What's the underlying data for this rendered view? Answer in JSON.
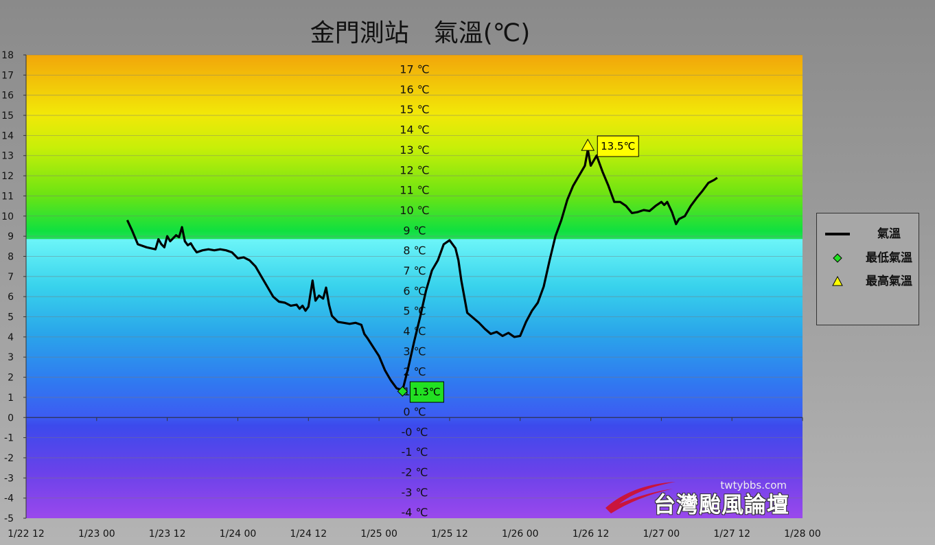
{
  "chart_data": {
    "type": "line",
    "title": "金門測站　氣溫(℃)",
    "ylim": [
      -5,
      18
    ],
    "yticks": [
      "-5",
      "-4",
      "-3",
      "-2",
      "-1",
      "0",
      "1",
      "2",
      "3",
      "4",
      "5",
      "6",
      "7",
      "8",
      "9",
      "10",
      "11",
      "12",
      "13",
      "14",
      "15",
      "16",
      "17",
      "18"
    ],
    "xlim": [
      0,
      132
    ],
    "xticks": [
      {
        "label": "1/22 12",
        "x": 0
      },
      {
        "label": "1/23 00",
        "x": 12
      },
      {
        "label": "1/23 12",
        "x": 24
      },
      {
        "label": "1/24 00",
        "x": 36
      },
      {
        "label": "1/24 12",
        "x": 48
      },
      {
        "label": "1/25 00",
        "x": 60
      },
      {
        "label": "1/25 12",
        "x": 72
      },
      {
        "label": "1/26 00",
        "x": 84
      },
      {
        "label": "1/26 12",
        "x": 96
      },
      {
        "label": "1/27 00",
        "x": 108
      },
      {
        "label": "1/27 12",
        "x": 120
      },
      {
        "label": "1/28 00",
        "x": 132
      }
    ],
    "band_labels": [
      "17 ℃",
      "16 ℃",
      "15 ℃",
      "14 ℃",
      "13 ℃",
      "12 ℃",
      "11 ℃",
      "10 ℃",
      "9 ℃",
      "8 ℃",
      "7 ℃",
      "6 ℃",
      "5 ℃",
      "4 ℃",
      "3 ℃",
      "2 ℃",
      "1 ℃",
      "0 ℃",
      "-0 ℃",
      "-1 ℃",
      "-2 ℃",
      "-3 ℃",
      "-4 ℃"
    ],
    "series": [
      {
        "name": "氣溫",
        "color": "#000000",
        "points": [
          [
            17.2,
            9.8
          ],
          [
            18,
            9.3
          ],
          [
            19,
            8.6
          ],
          [
            20.5,
            8.45
          ],
          [
            22,
            8.35
          ],
          [
            22.5,
            8.85
          ],
          [
            23,
            8.6
          ],
          [
            23.5,
            8.45
          ],
          [
            24,
            9.0
          ],
          [
            24.5,
            8.75
          ],
          [
            25,
            8.9
          ],
          [
            25.5,
            9.05
          ],
          [
            26,
            8.95
          ],
          [
            26.5,
            9.45
          ],
          [
            27,
            8.75
          ],
          [
            27.5,
            8.55
          ],
          [
            28,
            8.65
          ],
          [
            28.5,
            8.4
          ],
          [
            29,
            8.2
          ],
          [
            30,
            8.3
          ],
          [
            31,
            8.35
          ],
          [
            32,
            8.3
          ],
          [
            33,
            8.35
          ],
          [
            34,
            8.3
          ],
          [
            35,
            8.2
          ],
          [
            36,
            7.9
          ],
          [
            37,
            7.95
          ],
          [
            38,
            7.8
          ],
          [
            39,
            7.5
          ],
          [
            40,
            7.0
          ],
          [
            41,
            6.5
          ],
          [
            42,
            6.0
          ],
          [
            43,
            5.75
          ],
          [
            44,
            5.7
          ],
          [
            45,
            5.55
          ],
          [
            46,
            5.6
          ],
          [
            46.5,
            5.4
          ],
          [
            47,
            5.55
          ],
          [
            47.5,
            5.3
          ],
          [
            48,
            5.5
          ],
          [
            48.7,
            6.8
          ],
          [
            49.2,
            5.8
          ],
          [
            49.8,
            6.05
          ],
          [
            50.5,
            5.9
          ],
          [
            51,
            6.45
          ],
          [
            51.5,
            5.6
          ],
          [
            52,
            5.05
          ],
          [
            53,
            4.75
          ],
          [
            54,
            4.7
          ],
          [
            55,
            4.65
          ],
          [
            56,
            4.7
          ],
          [
            57,
            4.6
          ],
          [
            57.5,
            4.15
          ],
          [
            58,
            3.95
          ],
          [
            59,
            3.5
          ],
          [
            60,
            3.05
          ],
          [
            61,
            2.35
          ],
          [
            62,
            1.85
          ],
          [
            63,
            1.45
          ],
          [
            64,
            1.35
          ],
          [
            65,
            2.5
          ],
          [
            66,
            3.8
          ],
          [
            67,
            5.0
          ],
          [
            68,
            6.3
          ],
          [
            69,
            7.3
          ],
          [
            70,
            7.8
          ],
          [
            70.5,
            8.2
          ],
          [
            71,
            8.6
          ],
          [
            72,
            8.8
          ],
          [
            73,
            8.4
          ],
          [
            73.5,
            7.8
          ],
          [
            74,
            6.8
          ],
          [
            75,
            5.2
          ],
          [
            76,
            4.95
          ],
          [
            77,
            4.7
          ],
          [
            78,
            4.4
          ],
          [
            79,
            4.15
          ],
          [
            80,
            4.25
          ],
          [
            81,
            4.05
          ],
          [
            82,
            4.2
          ],
          [
            83,
            4.0
          ],
          [
            84,
            4.05
          ],
          [
            85,
            4.75
          ],
          [
            86,
            5.3
          ],
          [
            87,
            5.7
          ],
          [
            88,
            6.5
          ],
          [
            89,
            7.8
          ],
          [
            90,
            9.0
          ],
          [
            91,
            9.8
          ],
          [
            92,
            10.8
          ],
          [
            93,
            11.5
          ],
          [
            94,
            12.0
          ],
          [
            95,
            12.5
          ],
          [
            95.5,
            13.3
          ],
          [
            96,
            12.5
          ],
          [
            97,
            13.0
          ],
          [
            98,
            12.2
          ],
          [
            99,
            11.5
          ],
          [
            100,
            10.7
          ],
          [
            101,
            10.7
          ],
          [
            102,
            10.5
          ],
          [
            103,
            10.15
          ],
          [
            104,
            10.2
          ],
          [
            105,
            10.3
          ],
          [
            106,
            10.25
          ],
          [
            107,
            10.5
          ],
          [
            108,
            10.7
          ],
          [
            108.5,
            10.55
          ],
          [
            109,
            10.7
          ],
          [
            109.8,
            10.2
          ],
          [
            110.5,
            9.6
          ],
          [
            111,
            9.85
          ],
          [
            112,
            10.0
          ],
          [
            113,
            10.5
          ],
          [
            114,
            10.9
          ],
          [
            115,
            11.25
          ],
          [
            116,
            11.65
          ],
          [
            117,
            11.8
          ],
          [
            117.5,
            11.9
          ]
        ]
      }
    ],
    "min_point": {
      "name": "最低氣溫",
      "x": 64,
      "y": 1.3,
      "label": "1.3℃",
      "color": "#22e022"
    },
    "max_point": {
      "name": "最高氣溫",
      "x": 95.5,
      "y": 13.5,
      "label": "13.5℃",
      "color": "#ffff00"
    },
    "legend_position": "right"
  },
  "legend": {
    "items": [
      {
        "label": "氣溫",
        "marker": "line"
      },
      {
        "label": "最低氣溫",
        "marker": "diamond"
      },
      {
        "label": "最高氣溫",
        "marker": "triangle"
      }
    ]
  },
  "watermark": {
    "url": "twtybbs.com",
    "name": "台灣颱風論壇"
  }
}
